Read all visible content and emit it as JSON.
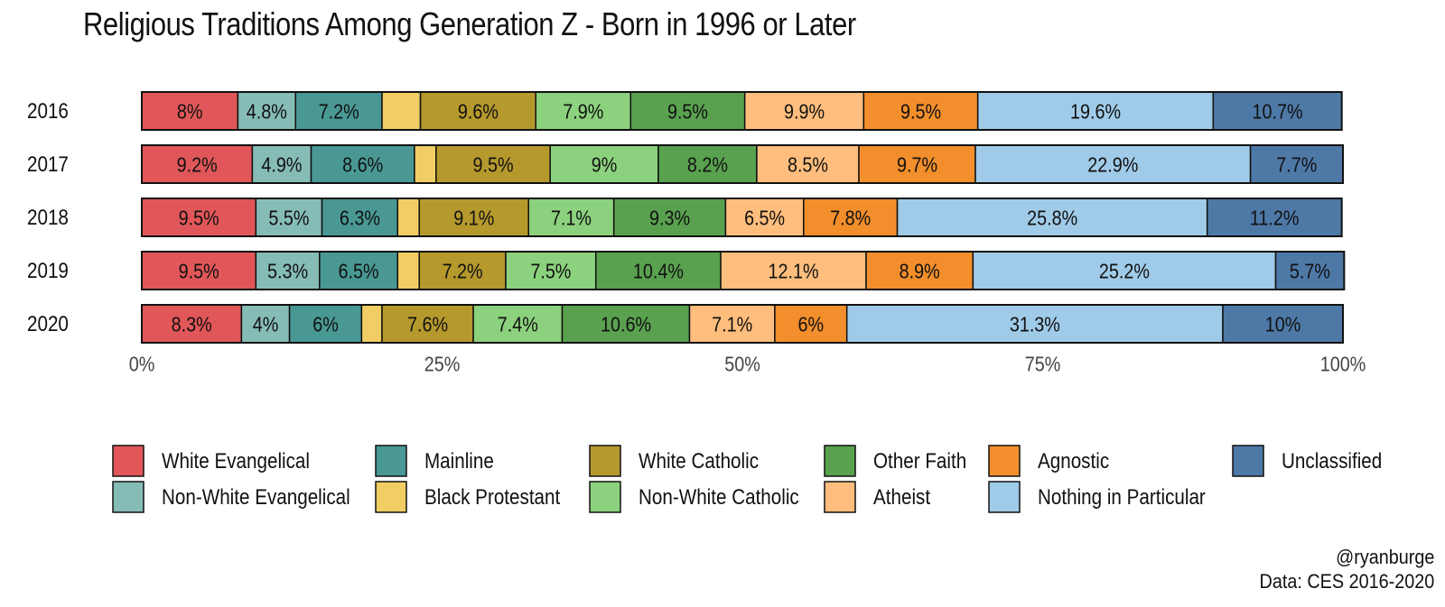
{
  "title": "Religious Traditions Among Generation Z - Born in 1996 or Later",
  "credits": {
    "handle": "@ryanburge",
    "source": "Data: CES 2016-2020"
  },
  "colors": {
    "White Evangelical": "#e15759",
    "Non-White Evangelical": "#86bcb6",
    "Mainline": "#499894",
    "Black Protestant": "#f1ce63",
    "White Catholic": "#b6992d",
    "Non-White Catholic": "#8cd17d",
    "Other Faith": "#59a14f",
    "Atheist": "#ffbe7d",
    "Agnostic": "#f28e2b",
    "Nothing in Particular": "#a0cbe8",
    "Unclassified": "#4e79a7"
  },
  "chart_data": {
    "type": "bar",
    "orientation": "horizontal",
    "stacked": true,
    "categories": [
      "2016",
      "2017",
      "2018",
      "2019",
      "2020"
    ],
    "series": [
      {
        "name": "White Evangelical",
        "values": [
          8,
          9.2,
          9.5,
          9.5,
          8.3
        ],
        "labels": [
          "8%",
          "9.2%",
          "9.5%",
          "9.5%",
          "8.3%"
        ]
      },
      {
        "name": "Non-White Evangelical",
        "values": [
          4.8,
          4.9,
          5.5,
          5.3,
          4
        ],
        "labels": [
          "4.8%",
          "4.9%",
          "5.5%",
          "5.3%",
          "4%"
        ]
      },
      {
        "name": "Mainline",
        "values": [
          7.2,
          8.6,
          6.3,
          6.5,
          6
        ],
        "labels": [
          "7.2%",
          "8.6%",
          "6.3%",
          "6.5%",
          "6%"
        ]
      },
      {
        "name": "Black Protestant",
        "values": [
          3.2,
          1.8,
          1.8,
          1.8,
          1.7
        ],
        "labels": [
          "",
          "",
          "",
          "",
          ""
        ]
      },
      {
        "name": "White Catholic",
        "values": [
          9.6,
          9.5,
          9.1,
          7.2,
          7.6
        ],
        "labels": [
          "9.6%",
          "9.5%",
          "9.1%",
          "7.2%",
          "7.6%"
        ]
      },
      {
        "name": "Non-White Catholic",
        "values": [
          7.9,
          9,
          7.1,
          7.5,
          7.4
        ],
        "labels": [
          "7.9%",
          "9%",
          "7.1%",
          "7.5%",
          "7.4%"
        ]
      },
      {
        "name": "Other Faith",
        "values": [
          9.5,
          8.2,
          9.3,
          10.4,
          10.6
        ],
        "labels": [
          "9.5%",
          "8.2%",
          "9.3%",
          "10.4%",
          "10.6%"
        ]
      },
      {
        "name": "Atheist",
        "values": [
          9.9,
          8.5,
          6.5,
          12.1,
          7.1
        ],
        "labels": [
          "9.9%",
          "8.5%",
          "6.5%",
          "12.1%",
          "7.1%"
        ]
      },
      {
        "name": "Agnostic",
        "values": [
          9.5,
          9.7,
          7.8,
          8.9,
          6
        ],
        "labels": [
          "9.5%",
          "9.7%",
          "7.8%",
          "8.9%",
          "6%"
        ]
      },
      {
        "name": "Nothing in Particular",
        "values": [
          19.6,
          22.9,
          25.8,
          25.2,
          31.3
        ],
        "labels": [
          "19.6%",
          "22.9%",
          "25.8%",
          "25.2%",
          "31.3%"
        ]
      },
      {
        "name": "Unclassified",
        "values": [
          10.7,
          7.7,
          11.2,
          5.7,
          10
        ],
        "labels": [
          "10.7%",
          "7.7%",
          "11.2%",
          "5.7%",
          "10%"
        ]
      }
    ],
    "xlim": [
      0,
      100
    ],
    "xticks": [
      0,
      25,
      50,
      75,
      100
    ],
    "xtick_labels": [
      "0%",
      "25%",
      "50%",
      "75%",
      "100%"
    ],
    "grid": false,
    "legend_position": "bottom",
    "legend_order": [
      "White Evangelical",
      "Mainline",
      "White Catholic",
      "Other Faith",
      "Agnostic",
      "Unclassified",
      "Non-White Evangelical",
      "Black Protestant",
      "Non-White Catholic",
      "Atheist",
      "Nothing in Particular"
    ]
  }
}
